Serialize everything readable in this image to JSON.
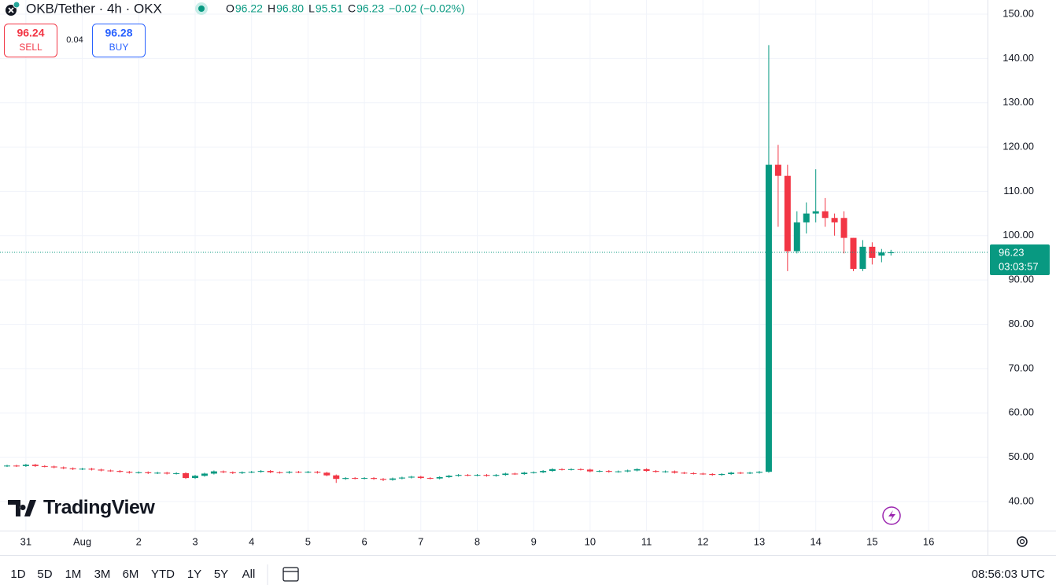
{
  "header": {
    "symbol": "OKB/Tether · 4h · OKX",
    "ohlc": [
      {
        "label": "O",
        "value": "96.22"
      },
      {
        "label": "H",
        "value": "96.80"
      },
      {
        "label": "L",
        "value": "95.51"
      },
      {
        "label": "C",
        "value": "96.23"
      }
    ],
    "change": "−0.02 (−0.02%)"
  },
  "trade": {
    "sell": {
      "price": "96.24",
      "label": "SELL"
    },
    "spread": "0.04",
    "buy": {
      "price": "96.28",
      "label": "BUY"
    }
  },
  "chart_data": {
    "type": "candlestick",
    "up_color": "#089981",
    "down_color": "#f23645",
    "grid": true,
    "open": [
      48.0,
      48.1,
      48.0,
      48.3,
      48.0,
      47.9,
      47.7,
      47.5,
      47.3,
      47.4,
      47.2,
      47.0,
      46.9,
      46.7,
      46.5,
      46.6,
      46.4,
      46.5,
      46.3,
      46.4,
      45.3,
      45.8,
      46.3,
      46.8,
      46.6,
      46.4,
      46.6,
      46.7,
      46.9,
      46.6,
      46.5,
      46.7,
      46.6,
      46.7,
      46.5,
      45.9,
      45.1,
      45.3,
      45.2,
      45.3,
      45.1,
      44.9,
      45.2,
      45.4,
      45.6,
      45.3,
      45.2,
      45.5,
      45.8,
      46.0,
      45.9,
      46.0,
      45.8,
      46.0,
      46.3,
      46.2,
      46.5,
      46.6,
      46.9,
      47.3,
      47.2,
      47.3,
      47.2,
      46.8,
      46.9,
      46.7,
      46.8,
      47.0,
      47.3,
      46.9,
      46.7,
      46.8,
      46.5,
      46.4,
      46.3,
      46.2,
      46.0,
      46.2,
      46.5,
      46.4,
      46.5,
      46.7,
      116,
      113.5,
      96.5,
      103,
      105,
      105.5,
      104,
      104,
      99.5,
      92.5,
      97.5,
      95.5,
      96.22
    ],
    "high": [
      48.3,
      48.3,
      48.5,
      48.5,
      48.2,
      48.1,
      47.9,
      47.7,
      47.6,
      47.6,
      47.4,
      47.2,
      47.1,
      46.9,
      46.8,
      46.8,
      46.7,
      46.7,
      46.6,
      46.6,
      46.0,
      46.5,
      47.0,
      47.0,
      46.8,
      46.8,
      46.9,
      47.1,
      47.1,
      46.8,
      46.9,
      46.9,
      46.9,
      46.9,
      46.7,
      46.1,
      45.5,
      45.5,
      45.5,
      45.5,
      45.3,
      45.4,
      45.6,
      45.8,
      45.8,
      45.5,
      45.7,
      46.0,
      46.2,
      46.2,
      46.2,
      46.2,
      46.2,
      46.5,
      46.5,
      46.7,
      46.8,
      47.1,
      47.5,
      47.5,
      47.5,
      47.5,
      47.4,
      47.1,
      47.1,
      47.0,
      47.2,
      47.5,
      47.5,
      47.1,
      47.0,
      47.0,
      46.7,
      46.6,
      46.5,
      46.4,
      46.4,
      46.7,
      46.7,
      46.7,
      46.9,
      143,
      120.5,
      116,
      105.5,
      107.5,
      115,
      108.5,
      105,
      105.5,
      99.5,
      99,
      98.5,
      97,
      96.8
    ],
    "low": [
      47.8,
      47.8,
      47.8,
      47.8,
      47.7,
      47.5,
      47.3,
      47.1,
      47.1,
      47.0,
      46.8,
      46.7,
      46.5,
      46.3,
      46.3,
      46.2,
      46.2,
      46.1,
      46.1,
      45.1,
      45.1,
      45.6,
      46.1,
      46.4,
      46.2,
      46.2,
      46.4,
      46.5,
      46.4,
      46.3,
      46.3,
      46.4,
      46.4,
      46.3,
      45.7,
      44.2,
      44.9,
      45.0,
      45.0,
      44.9,
      44.6,
      44.7,
      45.0,
      45.2,
      45.1,
      45.0,
      45.0,
      45.3,
      45.6,
      45.7,
      45.7,
      45.6,
      45.6,
      45.8,
      46.0,
      46.0,
      46.3,
      46.4,
      46.7,
      47.0,
      47.0,
      47.0,
      46.6,
      46.6,
      46.5,
      46.5,
      46.6,
      46.8,
      46.7,
      46.5,
      46.5,
      46.3,
      46.2,
      46.1,
      46.0,
      45.8,
      45.8,
      46.0,
      46.2,
      46.2,
      46.3,
      46.5,
      102,
      92,
      96,
      100.5,
      103,
      102,
      100,
      96,
      92,
      92,
      93.5,
      94,
      95.51
    ],
    "close": [
      48.1,
      48.0,
      48.3,
      48.0,
      47.9,
      47.7,
      47.5,
      47.3,
      47.4,
      47.2,
      47.0,
      46.9,
      46.7,
      46.5,
      46.6,
      46.4,
      46.5,
      46.3,
      46.4,
      45.3,
      45.8,
      46.3,
      46.8,
      46.6,
      46.4,
      46.6,
      46.7,
      46.9,
      46.6,
      46.5,
      46.7,
      46.6,
      46.7,
      46.5,
      45.9,
      45.1,
      45.3,
      45.2,
      45.3,
      45.1,
      44.9,
      45.2,
      45.4,
      45.6,
      45.3,
      45.2,
      45.5,
      45.8,
      46.0,
      45.9,
      46.0,
      45.8,
      46.0,
      46.3,
      46.2,
      46.5,
      46.6,
      46.9,
      47.3,
      47.2,
      47.3,
      47.2,
      46.8,
      46.9,
      46.7,
      46.8,
      47.0,
      47.3,
      46.9,
      46.7,
      46.8,
      46.5,
      46.4,
      46.3,
      46.2,
      46.0,
      46.2,
      46.5,
      46.4,
      46.5,
      46.7,
      116,
      113.5,
      96.5,
      103,
      105,
      105.5,
      104,
      103,
      99.5,
      92.5,
      97.5,
      95,
      96.2,
      96.23
    ],
    "ylim": [
      33.43,
      153.19
    ],
    "yticks": [
      {
        "value": 40,
        "label": "40.00"
      },
      {
        "value": 50,
        "label": "50.00"
      },
      {
        "value": 60,
        "label": "60.00"
      },
      {
        "value": 70,
        "label": "70.00"
      },
      {
        "value": 80,
        "label": "80.00"
      },
      {
        "value": 90,
        "label": "90.00"
      },
      {
        "value": 100,
        "label": "100.00"
      },
      {
        "value": 110,
        "label": "110.00"
      },
      {
        "value": 120,
        "label": "120.00"
      },
      {
        "value": 130,
        "label": "130.00"
      },
      {
        "value": 140,
        "label": "140.00"
      },
      {
        "value": 150,
        "label": "150.00"
      }
    ],
    "xtick_labels": [
      "31",
      "Aug",
      "2",
      "3",
      "4",
      "5",
      "6",
      "7",
      "8",
      "9",
      "10",
      "11",
      "12",
      "13",
      "14",
      "15",
      "16"
    ],
    "last_price": "96.23",
    "countdown": "03:03:57"
  },
  "logo": "TradingView",
  "toolbar": {
    "ranges": [
      "1D",
      "5D",
      "1M",
      "3M",
      "6M",
      "YTD",
      "1Y",
      "5Y",
      "All"
    ],
    "clock": "08:56:03 UTC"
  }
}
